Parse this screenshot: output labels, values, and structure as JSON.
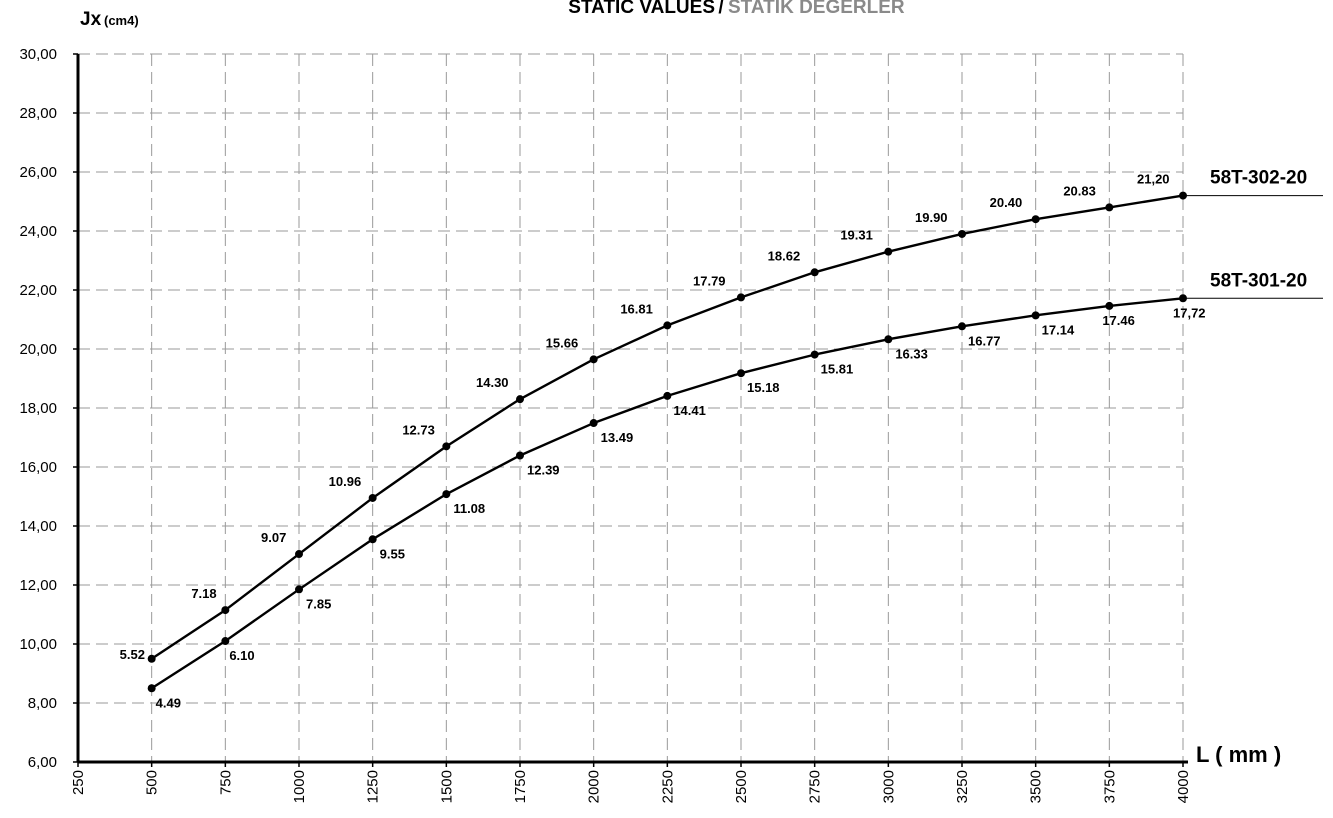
{
  "chart_data": {
    "type": "line",
    "title": "STATIC VALUES",
    "title_separator": "/",
    "subtitle": "STATİK DEĞERLER",
    "ylabel": "Jx",
    "ylabel_unit": "(cm4)",
    "xlabel": "L ( mm )",
    "ylim": [
      6,
      30
    ],
    "xlim": [
      250,
      4000
    ],
    "yticks": [
      "6,00",
      "8,00",
      "10,00",
      "12,00",
      "14,00",
      "16,00",
      "18,00",
      "20,00",
      "22,00",
      "24,00",
      "26,00",
      "28,00",
      "30,00"
    ],
    "xticks": [
      "250",
      "500",
      "750",
      "1000",
      "1250",
      "1500",
      "1750",
      "2000",
      "2250",
      "2500",
      "2750",
      "3000",
      "3250",
      "3500",
      "3750",
      "4000"
    ],
    "grid": true,
    "x": [
      500,
      750,
      1000,
      1250,
      1500,
      1750,
      2000,
      2250,
      2500,
      2750,
      3000,
      3250,
      3500,
      3750,
      4000
    ],
    "series": [
      {
        "name": "58T-302-20",
        "values": [
          5.52,
          7.18,
          9.07,
          10.96,
          12.73,
          14.3,
          15.66,
          16.81,
          17.79,
          18.62,
          19.31,
          19.9,
          20.4,
          20.83,
          21.2
        ],
        "point_labels": [
          "5.52",
          "7.18",
          "9.07",
          "10.96",
          "12.73",
          "14.30",
          "15.66",
          "16.81",
          "17.79",
          "18.62",
          "19.31",
          "19.90",
          "20.40",
          "20.83",
          "21,20"
        ],
        "plotted_y": [
          9.5,
          11.15,
          13.05,
          14.95,
          16.7,
          18.3,
          19.65,
          20.8,
          21.75,
          22.6,
          23.3,
          23.9,
          24.4,
          24.8,
          25.2
        ]
      },
      {
        "name": "58T-301-20",
        "values": [
          4.49,
          6.1,
          7.85,
          9.55,
          11.08,
          12.39,
          13.49,
          14.41,
          15.18,
          15.81,
          16.33,
          16.77,
          17.14,
          17.46,
          17.72
        ],
        "point_labels": [
          "4.49",
          "6.10",
          "7.85",
          "9.55",
          "11.08",
          "12.39",
          "13.49",
          "14.41",
          "15.18",
          "15.81",
          "16.33",
          "16.77",
          "17.14",
          "17.46",
          "17,72"
        ],
        "plotted_y": [
          8.5,
          10.1,
          11.85,
          13.55,
          15.08,
          16.39,
          17.49,
          18.41,
          19.18,
          19.81,
          20.33,
          20.77,
          21.14,
          21.46,
          21.72
        ]
      }
    ]
  }
}
